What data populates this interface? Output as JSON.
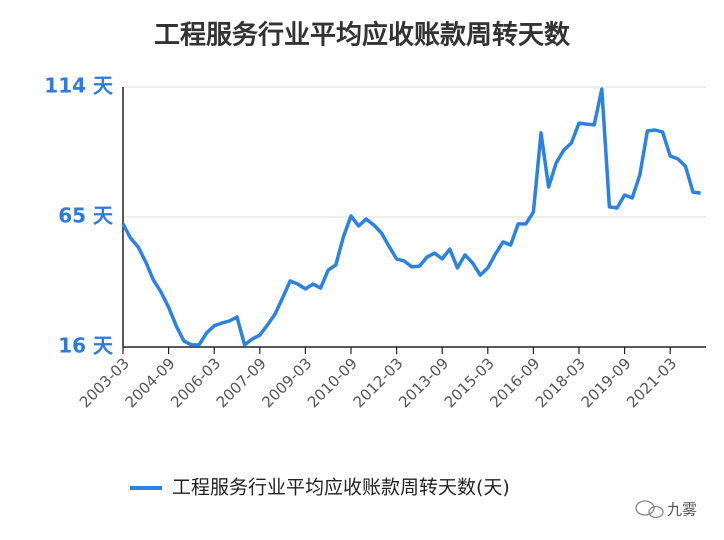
{
  "chart_data": {
    "type": "line",
    "title": "工程服务行业平均应收账款周转天数",
    "categories": [
      "2003-03",
      null,
      null,
      null,
      null,
      null,
      "2004-09",
      null,
      null,
      null,
      null,
      null,
      "2006-03",
      null,
      null,
      null,
      null,
      null,
      "2007-09",
      null,
      null,
      null,
      null,
      null,
      "2009-03",
      null,
      null,
      null,
      null,
      null,
      "2010-09",
      null,
      null,
      null,
      null,
      null,
      "2012-03",
      null,
      null,
      null,
      null,
      null,
      "2013-09",
      null,
      null,
      null,
      null,
      null,
      "2015-03",
      null,
      null,
      null,
      null,
      null,
      "2016-09",
      null,
      null,
      null,
      null,
      null,
      "2018-03",
      null,
      null,
      null,
      null,
      null,
      "2019-09",
      null,
      null,
      null,
      null,
      null,
      "2021-03",
      null,
      null,
      null,
      null
    ],
    "series": [
      {
        "name": "工程服务行业平均应收账款周转天数(天)",
        "color": "#2a82e4",
        "values": [
          62.4,
          57,
          53.7,
          48,
          41.3,
          36.7,
          31,
          24,
          18.3,
          16.8,
          16.8,
          21.3,
          24,
          25,
          25.8,
          27.3,
          16.8,
          19,
          20.5,
          24.3,
          28.4,
          34.5,
          40.9,
          39.7,
          37.9,
          39.7,
          38.2,
          45,
          46.9,
          57.5,
          65.4,
          61.6,
          64.2,
          62,
          59,
          54,
          49.2,
          48.4,
          46.2,
          46.5,
          49.9,
          51.4,
          49.2,
          52.9,
          45.8,
          50.7,
          47.7,
          43.1,
          45.8,
          51,
          55.6,
          54.4,
          62.4,
          62.4,
          66.9,
          96.7,
          76.3,
          85.4,
          90.2,
          92.9,
          100.4,
          100,
          99.7,
          113.2,
          68.8,
          68.4,
          73.3,
          72.2,
          80.8,
          97.4,
          97.8,
          97,
          88,
          86.9,
          84.2,
          74.4,
          74
        ]
      }
    ],
    "ylim": [
      16,
      114
    ],
    "yticks": [
      {
        "value": 16,
        "label": "16 天"
      },
      {
        "value": 65,
        "label": "65 天"
      },
      {
        "value": 114,
        "label": "114 天"
      }
    ],
    "grid": true,
    "legend": "bottom",
    "watermark": "九雾"
  }
}
